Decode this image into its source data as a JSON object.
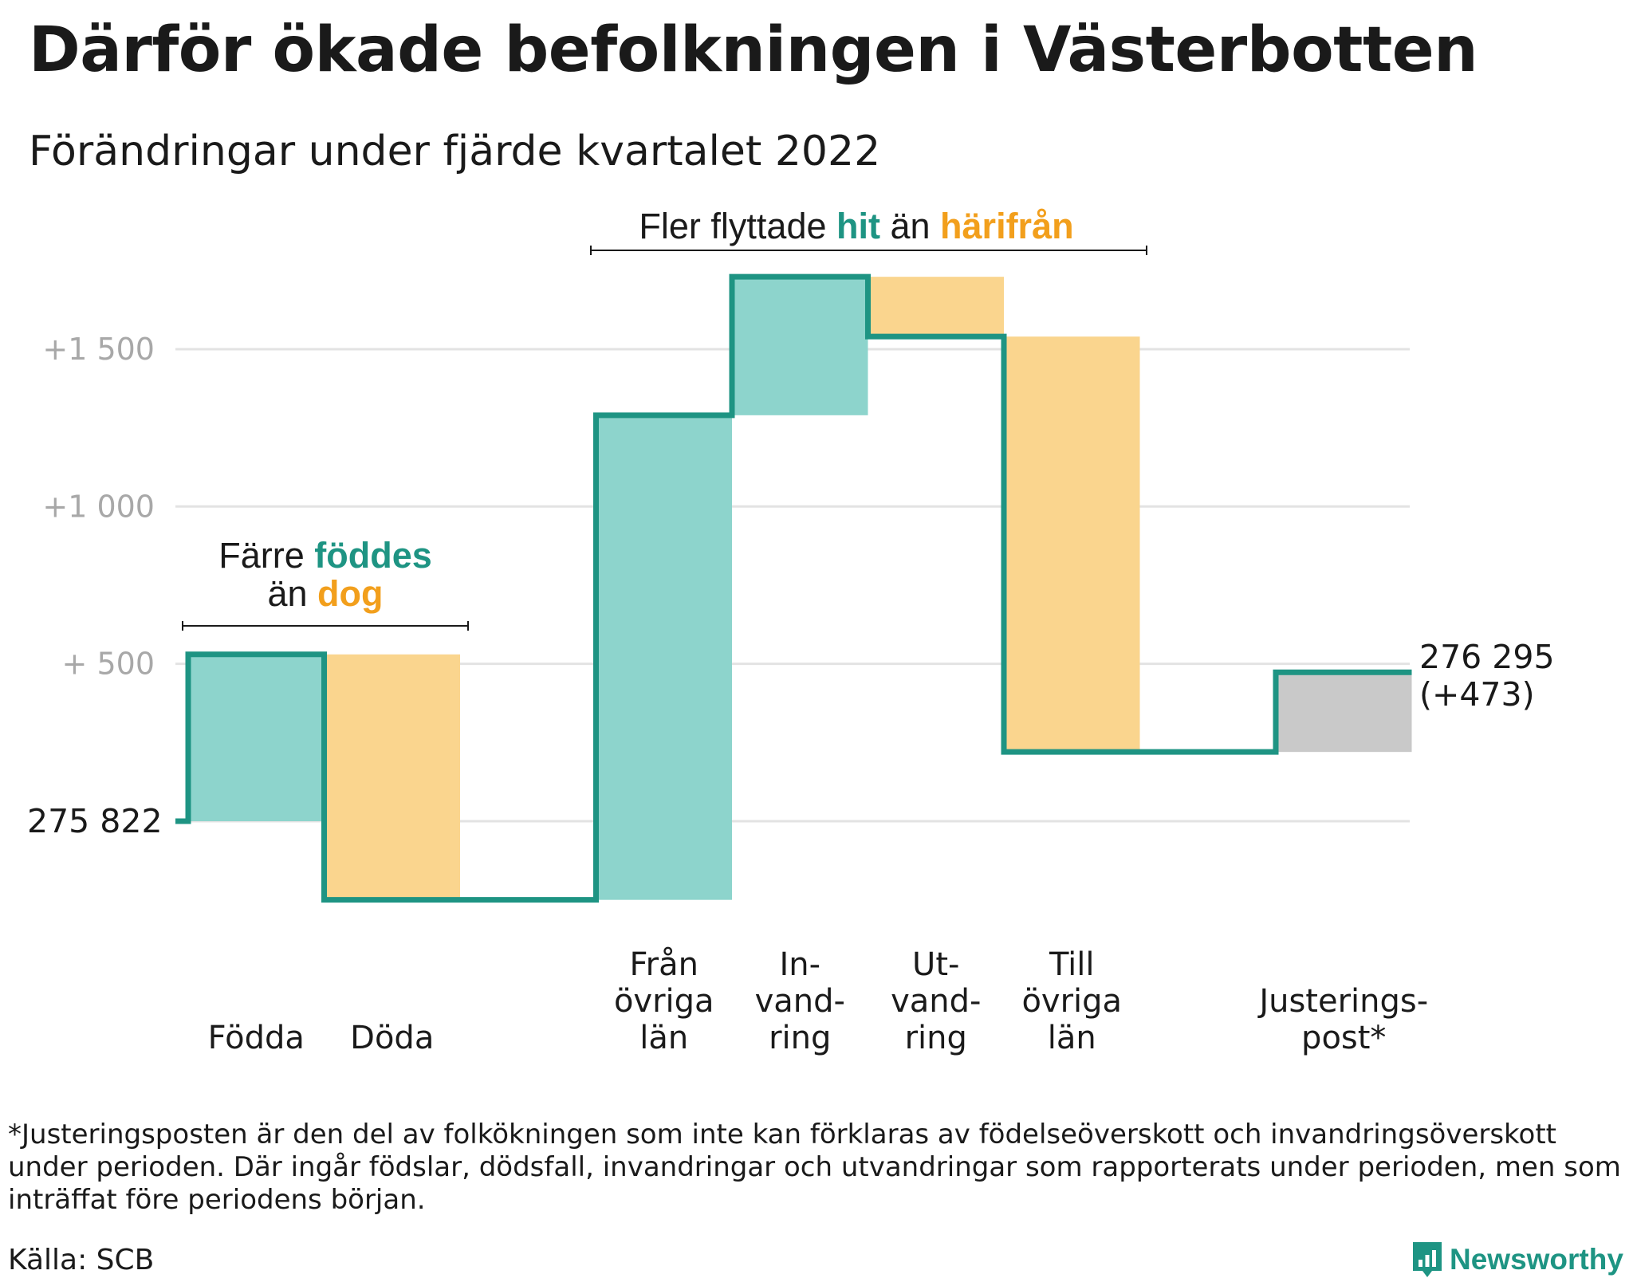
{
  "title": "Därför ökade befolkningen i Västerbotten",
  "subtitle": "Förändringar under fjärde kvartalet 2022",
  "colors": {
    "inflow": "#8dd4cc",
    "outflow": "#fad58e",
    "adjustment": "#c9c9c9",
    "line": "#1e9483",
    "accent_green": "#1e9483",
    "accent_orange": "#f29f1c",
    "grid": "#e3e3e3",
    "tick_text": "#a8a8a8"
  },
  "annotations": {
    "births": {
      "line1_pre": "Färre ",
      "line1_hl": "föddes",
      "line2_pre": "än ",
      "line2_hl": "dog"
    },
    "migration": {
      "pre": "Fler flyttade ",
      "hl1": "hit",
      "mid": " än ",
      "hl2": "härifrån"
    }
  },
  "start_label": "275 822",
  "end_label_line1": "276 295",
  "end_label_line2": "(+473)",
  "footnote": "*Justeringsposten är den del av folkökningen som inte kan förklaras av födelseöverskott och invandringsöverskott under perioden. Där ingår födslar, dödsfall, invandringar och utvandringar som rapporterats under perioden, men som inträffat före periodens början.",
  "source": "Källa: SCB",
  "logo_text": "Newsworthy",
  "chart_data": {
    "type": "waterfall",
    "start_value": 275822,
    "end_value": 276295,
    "net_change": 473,
    "ylim": [
      -300,
      1850
    ],
    "yticks": [
      {
        "value": 500,
        "label": "+ 500"
      },
      {
        "value": 1000,
        "label": "+1 000"
      },
      {
        "value": 1500,
        "label": "+1 500"
      }
    ],
    "grid": true,
    "steps": [
      {
        "label": [
          "Födda"
        ],
        "kind": "inflow",
        "from": 0,
        "to": 530
      },
      {
        "label": [
          "Döda"
        ],
        "kind": "outflow",
        "from": 530,
        "to": -250
      },
      {
        "label": [],
        "kind": "none",
        "from": -250,
        "to": -250
      },
      {
        "label": [
          "Från",
          "övriga",
          "län"
        ],
        "kind": "inflow",
        "from": -250,
        "to": 1290
      },
      {
        "label": [
          "In-",
          "vand-",
          "ring"
        ],
        "kind": "inflow",
        "from": 1290,
        "to": 1730
      },
      {
        "label": [
          "Ut-",
          "vand-",
          "ring"
        ],
        "kind": "outflow",
        "from": 1730,
        "to": 1540
      },
      {
        "label": [
          "Till",
          "övriga",
          "län"
        ],
        "kind": "outflow",
        "from": 1540,
        "to": 220
      },
      {
        "label": [],
        "kind": "none",
        "from": 220,
        "to": 220
      },
      {
        "label": [
          "Justerings-",
          "post*"
        ],
        "kind": "adjustment",
        "from": 220,
        "to": 473
      }
    ]
  }
}
